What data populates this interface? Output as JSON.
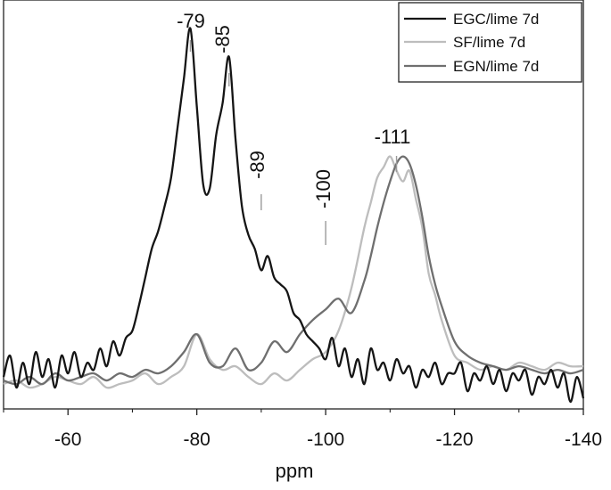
{
  "chart_data": {
    "type": "line",
    "title": "",
    "xlabel": "ppm",
    "ylabel": "",
    "xlim": [
      -50,
      -140
    ],
    "ylim": [
      -0.07,
      1.08
    ],
    "x_ticks": [
      -60,
      -80,
      -100,
      -120,
      -140
    ],
    "x_tick_labels": [
      "-60",
      "-80",
      "-100",
      "-120",
      "-140"
    ],
    "grid": false,
    "legend_position": "top-right",
    "series": [
      {
        "name": "EGC/lime 7d",
        "color": "#151515",
        "x": [
          -50,
          -51,
          -52,
          -53,
          -54,
          -55,
          -56,
          -57,
          -58,
          -59,
          -60,
          -61,
          -62,
          -63,
          -64,
          -65,
          -66,
          -67,
          -68,
          -69,
          -70,
          -71,
          -72,
          -73,
          -74,
          -75,
          -76,
          -77,
          -78,
          -79,
          -80,
          -81,
          -82,
          -83,
          -84,
          -85,
          -86,
          -87,
          -88,
          -89,
          -90,
          -91,
          -92,
          -93,
          -94,
          -95,
          -96,
          -97,
          -98,
          -99,
          -100,
          -101,
          -102,
          -103,
          -104,
          -105,
          -106,
          -107,
          -108,
          -109,
          -110,
          -111,
          -112,
          -113,
          -114,
          -115,
          -116,
          -117,
          -118,
          -119,
          -120,
          -121,
          -122,
          -123,
          -124,
          -125,
          -126,
          -127,
          -128,
          -129,
          -130,
          -131,
          -132,
          -133,
          -134,
          -135,
          -136,
          -137,
          -138,
          -139,
          -140
        ],
        "y": [
          0.02,
          0.08,
          -0.01,
          0.06,
          0.0,
          0.09,
          0.02,
          0.07,
          -0.01,
          0.08,
          0.03,
          0.09,
          0.02,
          0.06,
          0.04,
          0.1,
          0.05,
          0.12,
          0.08,
          0.13,
          0.15,
          0.22,
          0.3,
          0.38,
          0.43,
          0.5,
          0.58,
          0.72,
          0.86,
          1.0,
          0.78,
          0.56,
          0.55,
          0.7,
          0.79,
          0.92,
          0.69,
          0.5,
          0.42,
          0.38,
          0.32,
          0.36,
          0.3,
          0.28,
          0.26,
          0.2,
          0.18,
          0.14,
          0.12,
          0.1,
          0.07,
          0.13,
          0.05,
          0.1,
          0.02,
          0.07,
          0.0,
          0.1,
          0.04,
          0.06,
          0.01,
          0.07,
          0.03,
          0.05,
          -0.01,
          0.04,
          0.02,
          0.06,
          0.0,
          0.03,
          0.03,
          0.06,
          -0.02,
          0.03,
          0.01,
          0.05,
          0.0,
          0.04,
          -0.02,
          0.03,
          0.01,
          0.04,
          -0.03,
          0.02,
          0.0,
          0.04,
          -0.01,
          0.03,
          -0.05,
          0.02,
          -0.04
        ]
      },
      {
        "name": "SF/lime 7d",
        "color": "#bdbdbd",
        "x": [
          -50,
          -52,
          -54,
          -56,
          -58,
          -60,
          -62,
          -64,
          -66,
          -68,
          -70,
          -72,
          -74,
          -76,
          -78,
          -80,
          -82,
          -84,
          -86,
          -88,
          -90,
          -92,
          -94,
          -96,
          -98,
          -100,
          -102,
          -104,
          -106,
          -107,
          -108,
          -109,
          -110,
          -111,
          -112,
          -113,
          -114,
          -115,
          -116,
          -117,
          -118,
          -120,
          -122,
          -124,
          -126,
          -128,
          -130,
          -132,
          -134,
          -136,
          -138,
          -140
        ],
        "y": [
          0.0,
          0.01,
          -0.01,
          0.0,
          0.02,
          0.01,
          0.0,
          0.02,
          -0.01,
          0.0,
          0.01,
          0.03,
          0.0,
          0.02,
          0.05,
          0.14,
          0.07,
          0.04,
          0.05,
          0.02,
          0.0,
          0.03,
          0.01,
          0.04,
          0.07,
          0.09,
          0.15,
          0.27,
          0.44,
          0.51,
          0.58,
          0.61,
          0.64,
          0.6,
          0.57,
          0.6,
          0.52,
          0.44,
          0.31,
          0.25,
          0.18,
          0.08,
          0.06,
          0.04,
          0.05,
          0.04,
          0.06,
          0.05,
          0.04,
          0.06,
          0.05,
          0.05
        ]
      },
      {
        "name": "EGN/lime 7d",
        "color": "#6f6f6f",
        "x": [
          -50,
          -52,
          -54,
          -56,
          -58,
          -60,
          -62,
          -64,
          -66,
          -68,
          -70,
          -72,
          -74,
          -76,
          -78,
          -80,
          -82,
          -84,
          -86,
          -88,
          -90,
          -92,
          -94,
          -96,
          -98,
          -100,
          -102,
          -104,
          -106,
          -107,
          -108,
          -109,
          -110,
          -111,
          -112,
          -113,
          -114,
          -115,
          -116,
          -117,
          -118,
          -120,
          -122,
          -124,
          -126,
          -128,
          -130,
          -132,
          -134,
          -136,
          -138,
          -140
        ],
        "y": [
          0.01,
          0.0,
          0.02,
          0.0,
          0.03,
          0.01,
          0.02,
          0.03,
          0.01,
          0.03,
          0.02,
          0.04,
          0.03,
          0.05,
          0.09,
          0.14,
          0.06,
          0.05,
          0.1,
          0.04,
          0.06,
          0.12,
          0.09,
          0.14,
          0.18,
          0.21,
          0.24,
          0.2,
          0.29,
          0.36,
          0.44,
          0.51,
          0.57,
          0.62,
          0.64,
          0.62,
          0.56,
          0.47,
          0.36,
          0.28,
          0.22,
          0.12,
          0.08,
          0.06,
          0.05,
          0.04,
          0.05,
          0.04,
          0.03,
          0.04,
          0.03,
          0.04
        ]
      }
    ],
    "annotations": [
      {
        "text": "-79",
        "x": -79,
        "y": 1.0
      },
      {
        "text": "-85",
        "x": -85,
        "y": 0.9
      },
      {
        "text": "-89",
        "x": -90,
        "y": 0.38
      },
      {
        "text": "-100",
        "x": -100,
        "y": 0.25
      },
      {
        "text": "-111",
        "x": -111,
        "y": 0.64
      }
    ]
  }
}
